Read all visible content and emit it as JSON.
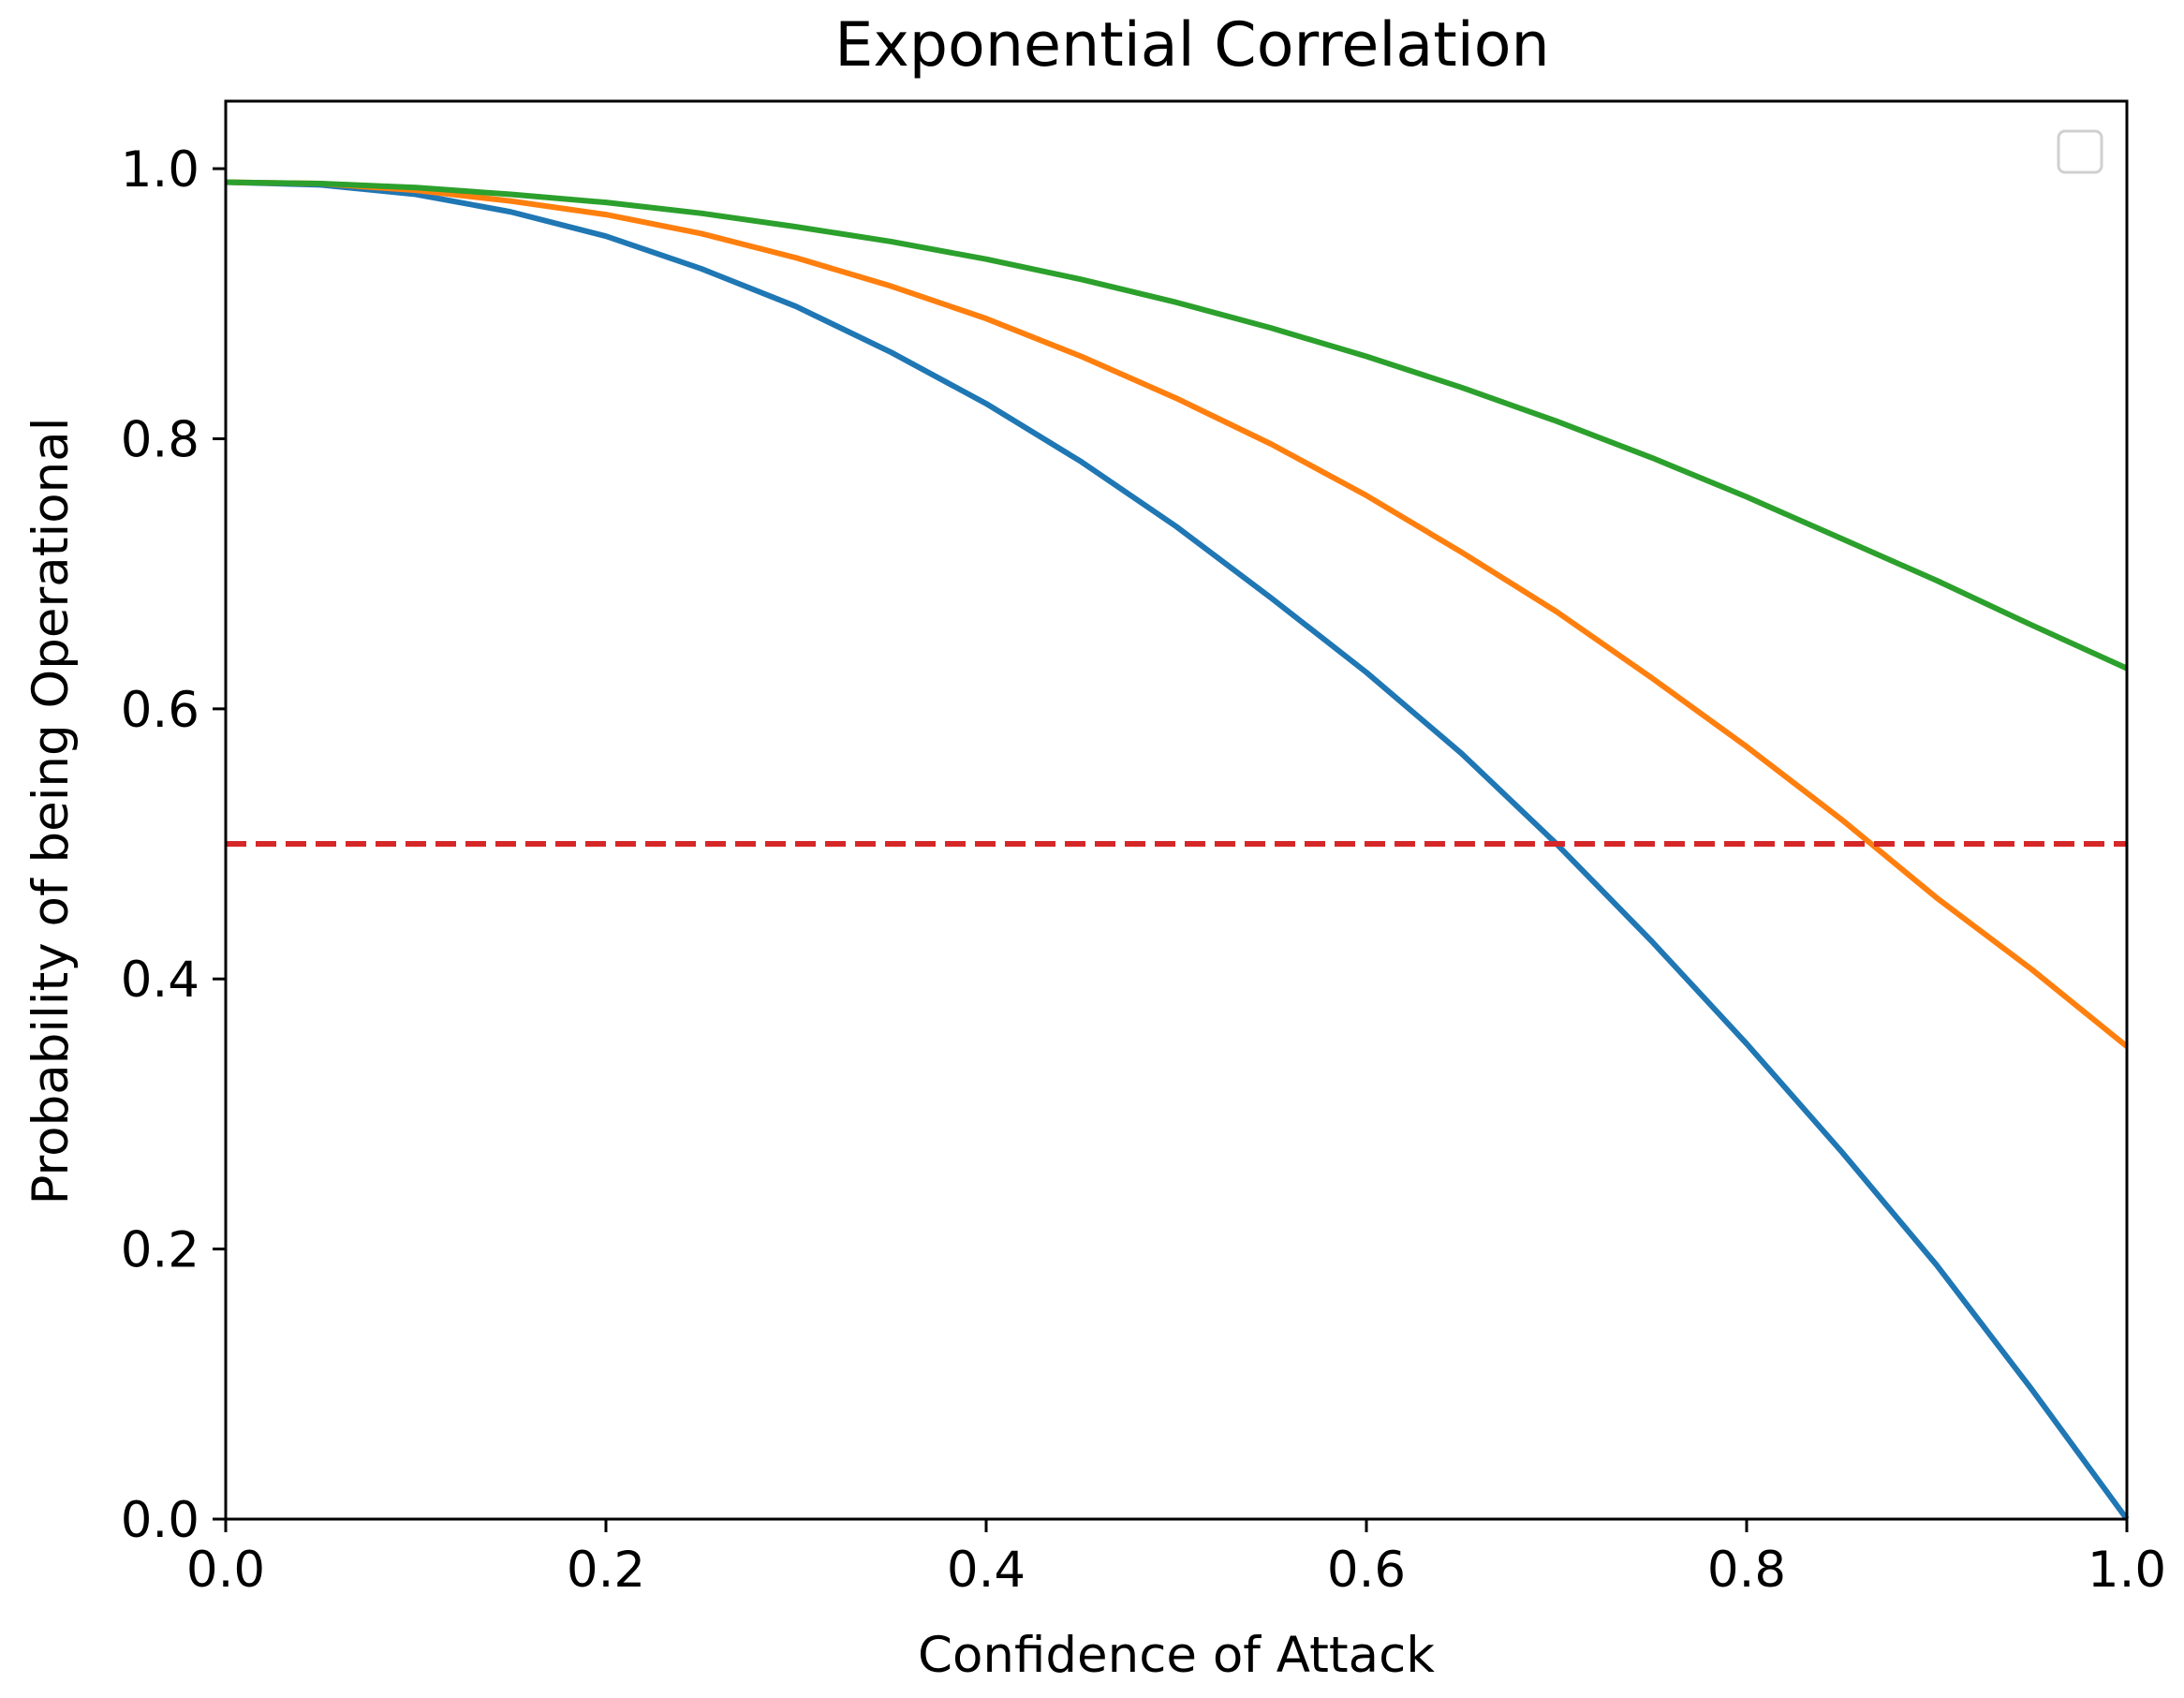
{
  "chart_data": {
    "type": "line",
    "title": "Exponential Correlation",
    "xlabel": "Confidence of Attack",
    "ylabel": "Probability of being Operational",
    "xlim": [
      0.0,
      1.0
    ],
    "ylim": [
      0.0,
      1.05
    ],
    "x_ticks": [
      "0.0",
      "0.2",
      "0.4",
      "0.6",
      "0.8",
      "1.0"
    ],
    "y_ticks": [
      "0.0",
      "0.2",
      "0.4",
      "0.6",
      "0.8",
      "1.0"
    ],
    "grid": false,
    "legend": "top-right (empty)",
    "x": [
      0.0,
      0.05,
      0.1,
      0.15,
      0.2,
      0.25,
      0.3,
      0.35,
      0.4,
      0.45,
      0.5,
      0.55,
      0.6,
      0.65,
      0.7,
      0.75,
      0.8,
      0.85,
      0.9,
      0.95,
      1.0
    ],
    "series": [
      {
        "name": "blue",
        "color": "#1f77b4",
        "values": [
          0.99,
          0.988,
          0.981,
          0.968,
          0.95,
          0.926,
          0.898,
          0.864,
          0.826,
          0.783,
          0.735,
          0.682,
          0.627,
          0.567,
          0.5,
          0.428,
          0.352,
          0.272,
          0.188,
          0.096,
          0.0
        ]
      },
      {
        "name": "orange",
        "color": "#ff7f0e",
        "values": [
          0.99,
          0.989,
          0.984,
          0.976,
          0.966,
          0.952,
          0.934,
          0.913,
          0.889,
          0.861,
          0.83,
          0.796,
          0.758,
          0.716,
          0.672,
          0.623,
          0.572,
          0.518,
          0.46,
          0.407,
          0.35
        ]
      },
      {
        "name": "green",
        "color": "#2ca02c",
        "values": [
          0.99,
          0.989,
          0.986,
          0.981,
          0.975,
          0.967,
          0.957,
          0.946,
          0.933,
          0.918,
          0.901,
          0.882,
          0.861,
          0.838,
          0.813,
          0.786,
          0.757,
          0.726,
          0.695,
          0.662,
          0.63
        ]
      }
    ],
    "threshold": {
      "y": 0.5,
      "color": "#d62728",
      "style": "dashed"
    }
  }
}
